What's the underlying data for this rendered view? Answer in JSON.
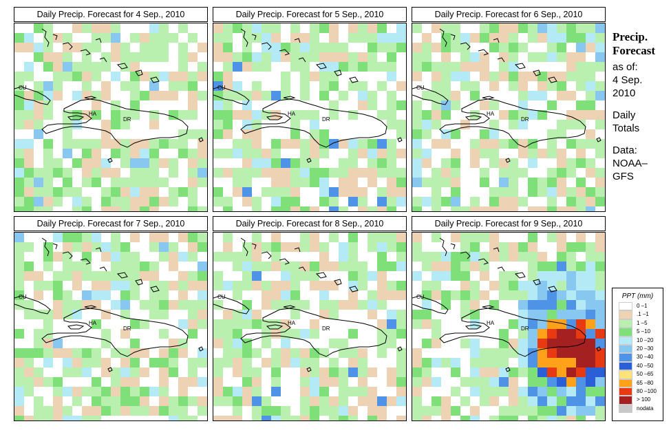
{
  "panels": [
    {
      "title": "Daily Precip. Forecast for  4 Sep., 2010",
      "seed": 11,
      "scenario": "light"
    },
    {
      "title": "Daily Precip. Forecast for  5 Sep., 2010",
      "seed": 23,
      "scenario": "medium"
    },
    {
      "title": "Daily Precip. Forecast for  6 Sep., 2010",
      "seed": 37,
      "scenario": "light"
    },
    {
      "title": "Daily Precip. Forecast for  7 Sep., 2010",
      "seed": 41,
      "scenario": "light"
    },
    {
      "title": "Daily Precip. Forecast for  8 Sep., 2010",
      "seed": 53,
      "scenario": "medium"
    },
    {
      "title": "Daily Precip. Forecast for  9 Sep., 2010",
      "seed": 67,
      "scenario": "heavy"
    }
  ],
  "map_labels": {
    "cuba": "CU",
    "haiti": "HA",
    "dominican_republic": "DR"
  },
  "sidebar": {
    "heading_line1": "Precip.",
    "heading_line2": "Forecast",
    "as_of": "as of:",
    "date_line1": "4 Sep.",
    "date_line2": "2010",
    "totals_line1": "Daily",
    "totals_line2": "Totals",
    "data_line1": "Data:",
    "data_line2": "NOAA–",
    "data_line3": "GFS"
  },
  "legend": {
    "title": "PPT (mm)",
    "items": [
      {
        "label": "0 –1",
        "color": "#ffffff"
      },
      {
        "label": ".1 –1",
        "color": "#edd3b3"
      },
      {
        "label": "1 –5",
        "color": "#b9f0b0"
      },
      {
        "label": "5 –10",
        "color": "#7fe07a"
      },
      {
        "label": "10 –20",
        "color": "#b4eaf5"
      },
      {
        "label": "20 –30",
        "color": "#88c8f0"
      },
      {
        "label": "30 –40",
        "color": "#4f93e6"
      },
      {
        "label": "40 –50",
        "color": "#2a5fd8"
      },
      {
        "label": "50 –65",
        "color": "#ffe27a"
      },
      {
        "label": "65 –80",
        "color": "#ffa21a"
      },
      {
        "label": "80 –100",
        "color": "#e83a12"
      },
      {
        "label": "> 100",
        "color": "#a52121"
      },
      {
        "label": "nodata",
        "color": "#c8c8c8"
      }
    ]
  }
}
